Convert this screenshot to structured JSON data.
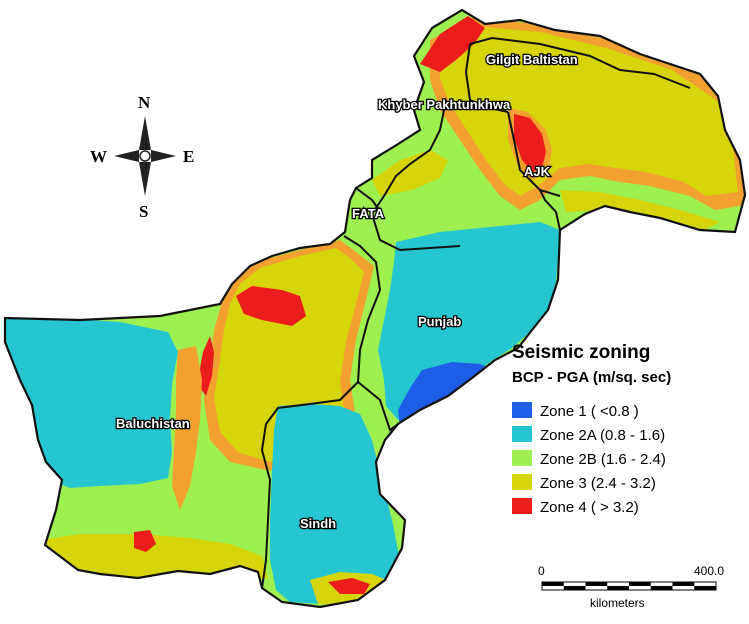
{
  "colors": {
    "zone1": "#1e5ee6",
    "zone2a": "#26c6d0",
    "zone2b": "#9ef050",
    "zone3": "#d6d40a",
    "zone4": "#ea1c1c",
    "orange": "#f2a030",
    "boundary": "#111111"
  },
  "compass": {
    "n": "N",
    "s": "S",
    "e": "E",
    "w": "W"
  },
  "provinces": {
    "gilgit": "Gilgit Baltistan",
    "kpk": "Khyber Pakhtunkhwa",
    "ajk": "AJK",
    "fata": "FATA",
    "punjab": "Punjab",
    "baluchistan": "Baluchistan",
    "sindh": "Sindh"
  },
  "legend": {
    "title": "Seismic zoning",
    "subtitle": "BCP - PGA (m/sq. sec)",
    "items": [
      {
        "label": "Zone 1 ( <0.8 )",
        "color": "#1e5ee6"
      },
      {
        "label": "Zone 2A (0.8 - 1.6)",
        "color": "#26c6d0"
      },
      {
        "label": "Zone 2B (1.6 - 2.4)",
        "color": "#9ef050"
      },
      {
        "label": "Zone 3 (2.4 - 3.2)",
        "color": "#d6d40a"
      },
      {
        "label": "Zone 4 ( > 3.2)",
        "color": "#ea1c1c"
      }
    ]
  },
  "scale": {
    "start": "0",
    "end": "400.0",
    "unit": "kilometers"
  }
}
